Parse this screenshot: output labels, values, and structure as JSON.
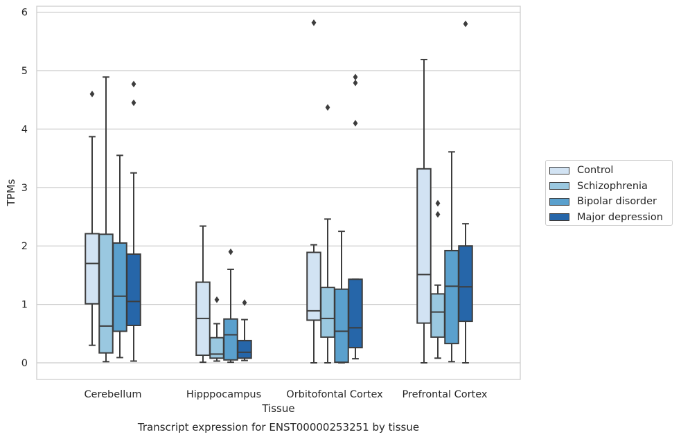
{
  "chart_data": {
    "type": "box",
    "title": "Transcript expression for ENST00000253251 by tissue",
    "xlabel": "Tissue",
    "ylabel": "TPMs",
    "ylim": [
      -0.28,
      6.1
    ],
    "yticks": [
      "0",
      "1",
      "2",
      "3",
      "4",
      "5",
      "6"
    ],
    "categories": [
      "Cerebellum",
      "Hipppocampus",
      "Orbitofontal Cortex",
      "Prefrontal Cortex"
    ],
    "grid": "horizontal",
    "legend_position": "right",
    "series": [
      {
        "name": "Control",
        "color": "#d2e3f3",
        "boxes": [
          {
            "whislo": 0.3,
            "q1": 1.01,
            "med": 1.7,
            "q3": 2.21,
            "whishi": 3.87,
            "fliers": [
              4.6
            ]
          },
          {
            "whislo": 0.01,
            "q1": 0.13,
            "med": 0.76,
            "q3": 1.38,
            "whishi": 2.34,
            "fliers": []
          },
          {
            "whislo": 0.0,
            "q1": 0.73,
            "med": 0.89,
            "q3": 1.89,
            "whishi": 2.02,
            "fliers": [
              5.82
            ]
          },
          {
            "whislo": 0.0,
            "q1": 0.68,
            "med": 1.51,
            "q3": 3.32,
            "whishi": 5.19,
            "fliers": []
          }
        ]
      },
      {
        "name": "Schizophrenia",
        "color": "#9ac8e0",
        "boxes": [
          {
            "whislo": 0.02,
            "q1": 0.17,
            "med": 0.63,
            "q3": 2.2,
            "whishi": 4.89,
            "fliers": []
          },
          {
            "whislo": 0.03,
            "q1": 0.08,
            "med": 0.15,
            "q3": 0.43,
            "whishi": 0.67,
            "fliers": [
              1.08
            ]
          },
          {
            "whislo": 0.0,
            "q1": 0.44,
            "med": 0.76,
            "q3": 1.29,
            "whishi": 2.46,
            "fliers": [
              4.37
            ]
          },
          {
            "whislo": 0.08,
            "q1": 0.44,
            "med": 0.87,
            "q3": 1.18,
            "whishi": 1.33,
            "fliers": [
              2.54,
              2.73
            ]
          }
        ]
      },
      {
        "name": "Bipolar disorder",
        "color": "#5aa0cd",
        "boxes": [
          {
            "whislo": 0.09,
            "q1": 0.54,
            "med": 1.14,
            "q3": 2.05,
            "whishi": 3.55,
            "fliers": []
          },
          {
            "whislo": 0.01,
            "q1": 0.05,
            "med": 0.48,
            "q3": 0.75,
            "whishi": 1.6,
            "fliers": [
              1.9
            ]
          },
          {
            "whislo": 0.0,
            "q1": 0.01,
            "med": 0.54,
            "q3": 1.26,
            "whishi": 2.25,
            "fliers": []
          },
          {
            "whislo": 0.02,
            "q1": 0.33,
            "med": 1.31,
            "q3": 1.92,
            "whishi": 3.61,
            "fliers": []
          }
        ]
      },
      {
        "name": "Major depression",
        "color": "#2666a9",
        "boxes": [
          {
            "whislo": 0.03,
            "q1": 0.64,
            "med": 1.05,
            "q3": 1.86,
            "whishi": 3.25,
            "fliers": [
              4.45,
              4.77
            ]
          },
          {
            "whislo": 0.04,
            "q1": 0.08,
            "med": 0.18,
            "q3": 0.38,
            "whishi": 0.74,
            "fliers": [
              1.03
            ]
          },
          {
            "whislo": 0.07,
            "q1": 0.26,
            "med": 0.6,
            "q3": 1.43,
            "whishi": 1.43,
            "fliers": [
              4.1,
              4.79,
              4.89
            ]
          },
          {
            "whislo": 0.0,
            "q1": 0.71,
            "med": 1.3,
            "q3": 2.0,
            "whishi": 2.38,
            "fliers": [
              5.8
            ]
          }
        ]
      }
    ]
  }
}
